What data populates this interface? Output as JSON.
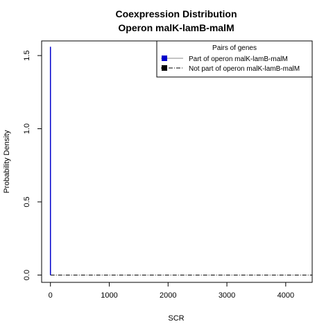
{
  "chart_data": {
    "type": "line",
    "title": "Coexpression Distribution",
    "subtitle": "Operon malK-lamB-malM",
    "xlabel": "SCR",
    "ylabel": "Probability Density",
    "xlim": [
      -150,
      4450
    ],
    "ylim": [
      -0.05,
      1.6
    ],
    "x_ticks": [
      0,
      1000,
      2000,
      3000,
      4000
    ],
    "x_tick_labels": [
      "0",
      "1000",
      "2000",
      "3000",
      "4000"
    ],
    "y_ticks": [
      0.0,
      0.5,
      1.0,
      1.5
    ],
    "y_tick_labels": [
      "0.0",
      "0.5",
      "1.0",
      "1.5"
    ],
    "grid": false,
    "legend": {
      "title": "Pairs of genes",
      "placement": "top-right",
      "entries": [
        {
          "label": "Part of operon malK-lamB-malM",
          "color": "#0000cc",
          "line_style": "solid"
        },
        {
          "label": "Not part of operon malK-lamB-malM",
          "color": "#000000",
          "line_style": "dashdot"
        }
      ]
    },
    "series": [
      {
        "name": "Part of operon malK-lamB-malM",
        "color": "#0000cc",
        "style": "solid",
        "points": [
          [
            0,
            0.0
          ],
          [
            0,
            1.56
          ],
          [
            0,
            0.0
          ]
        ]
      },
      {
        "name": "Not part of operon malK-lamB-malM",
        "color": "#000000",
        "style": "dashdot",
        "points": [
          [
            0,
            0.0
          ],
          [
            4450,
            0.0
          ]
        ]
      }
    ]
  }
}
